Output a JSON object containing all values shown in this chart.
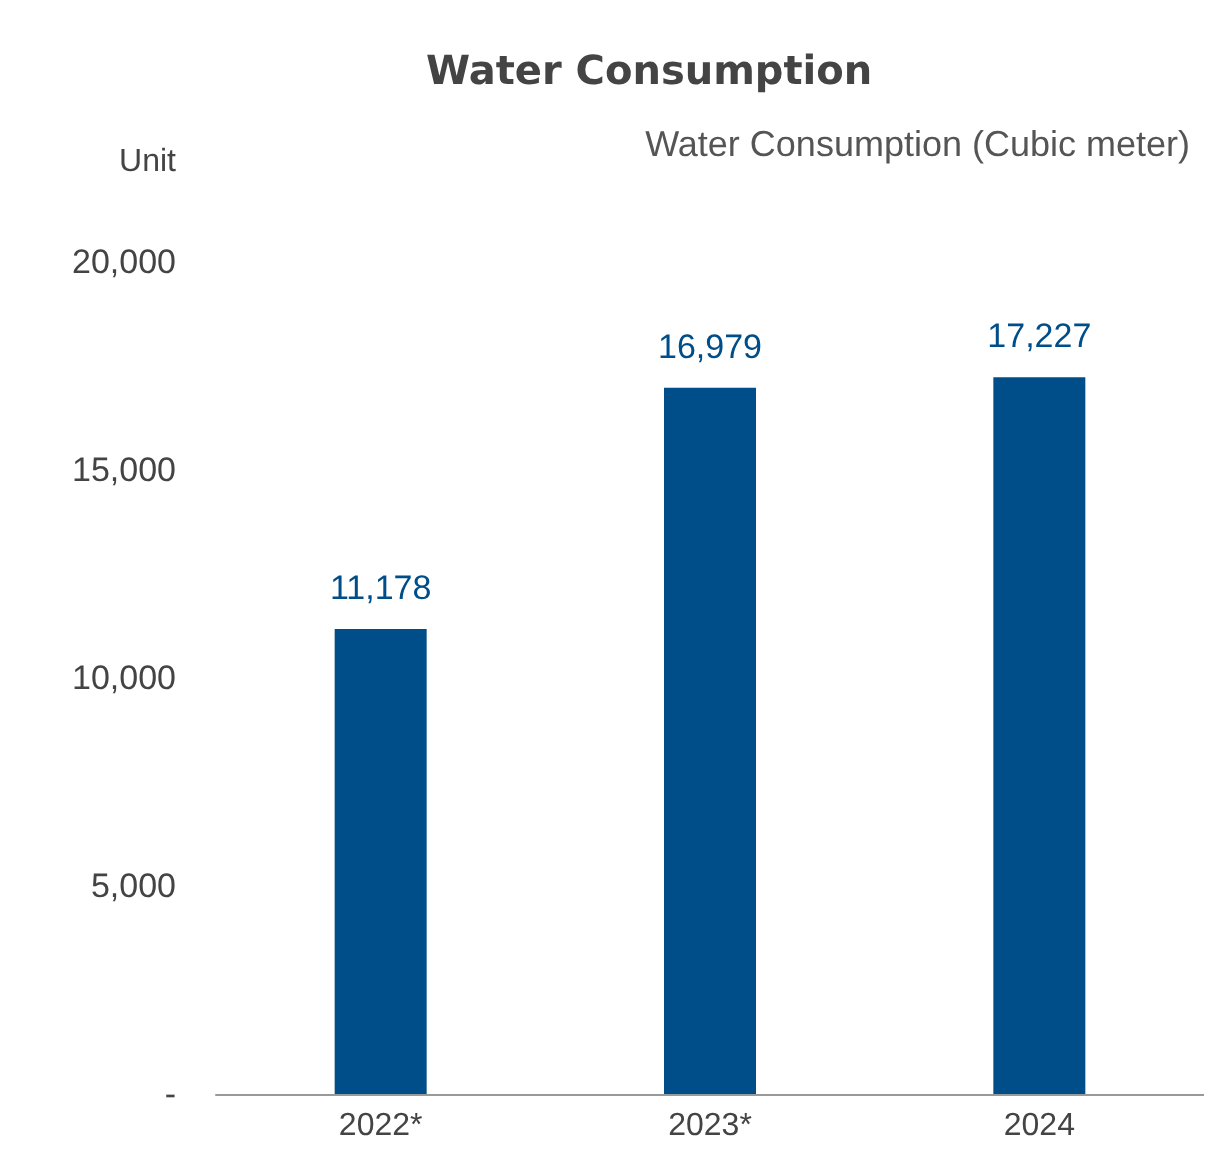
{
  "chart_data": {
    "type": "bar",
    "title": "Water Consumption",
    "subtitle": "Water Consumption (Cubic meter)",
    "ylabel": "Unit",
    "categories": [
      "2022*",
      "2023*",
      "2024"
    ],
    "values": [
      11178,
      16979,
      17227
    ],
    "color": "#004e89",
    "value_labels": [
      "11,178",
      "16,979",
      "17,227"
    ],
    "ylim": [
      0,
      20000
    ],
    "yticks": [
      {
        "value": 0,
        "label": "-"
      },
      {
        "value": 5000,
        "label": "5,000"
      },
      {
        "value": 10000,
        "label": "10,000"
      },
      {
        "value": 15000,
        "label": "15,000"
      },
      {
        "value": 20000,
        "label": "20,000"
      }
    ],
    "grid": false
  }
}
